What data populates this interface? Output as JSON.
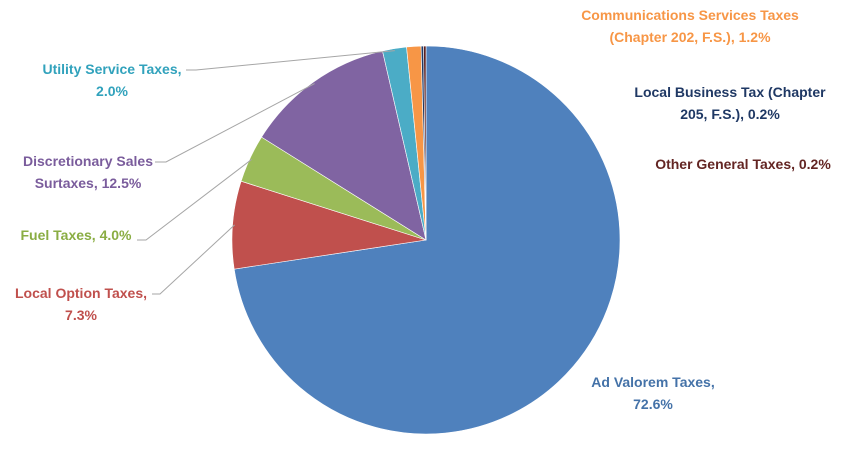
{
  "chart_data": {
    "type": "pie",
    "title": "",
    "slices": [
      {
        "label_lines": [
          "Ad Valorem Taxes,",
          "72.6%"
        ],
        "name": "Ad Valorem Taxes",
        "value": 72.6,
        "color": "#4f81bd",
        "label_color": "#4472a8"
      },
      {
        "label_lines": [
          "Local Option Taxes,",
          "7.3%"
        ],
        "name": "Local Option Taxes",
        "value": 7.3,
        "color": "#c0504d",
        "label_color": "#c0504d"
      },
      {
        "label_lines": [
          "Fuel Taxes, 4.0%"
        ],
        "name": "Fuel Taxes",
        "value": 4.0,
        "color": "#9bbb59",
        "label_color": "#8aad43"
      },
      {
        "label_lines": [
          "Discretionary Sales",
          "Surtaxes, 12.5%"
        ],
        "name": "Discretionary Sales Surtaxes",
        "value": 12.5,
        "color": "#8064a2",
        "label_color": "#7a5c9c"
      },
      {
        "label_lines": [
          "Utility Service Taxes,",
          "2.0%"
        ],
        "name": "Utility Service Taxes",
        "value": 2.0,
        "color": "#4bacc6",
        "label_color": "#31a2bc"
      },
      {
        "label_lines": [
          "Communications Services Taxes",
          "(Chapter 202, F.S.), 1.2%"
        ],
        "name": "Communications Services Taxes (Chapter 202, F.S.)",
        "value": 1.2,
        "color": "#f79646",
        "label_color": "#f79646"
      },
      {
        "label_lines": [
          "Local Business Tax (Chapter",
          "205, F.S.), 0.2%"
        ],
        "name": "Local Business Tax (Chapter 205, F.S.)",
        "value": 0.2,
        "color": "#1f3864",
        "label_color": "#1f3864"
      },
      {
        "label_lines": [
          "Other General Taxes, 0.2%"
        ],
        "name": "Other General Taxes",
        "value": 0.2,
        "color": "#5c1f1f",
        "label_color": "#632523"
      }
    ]
  }
}
